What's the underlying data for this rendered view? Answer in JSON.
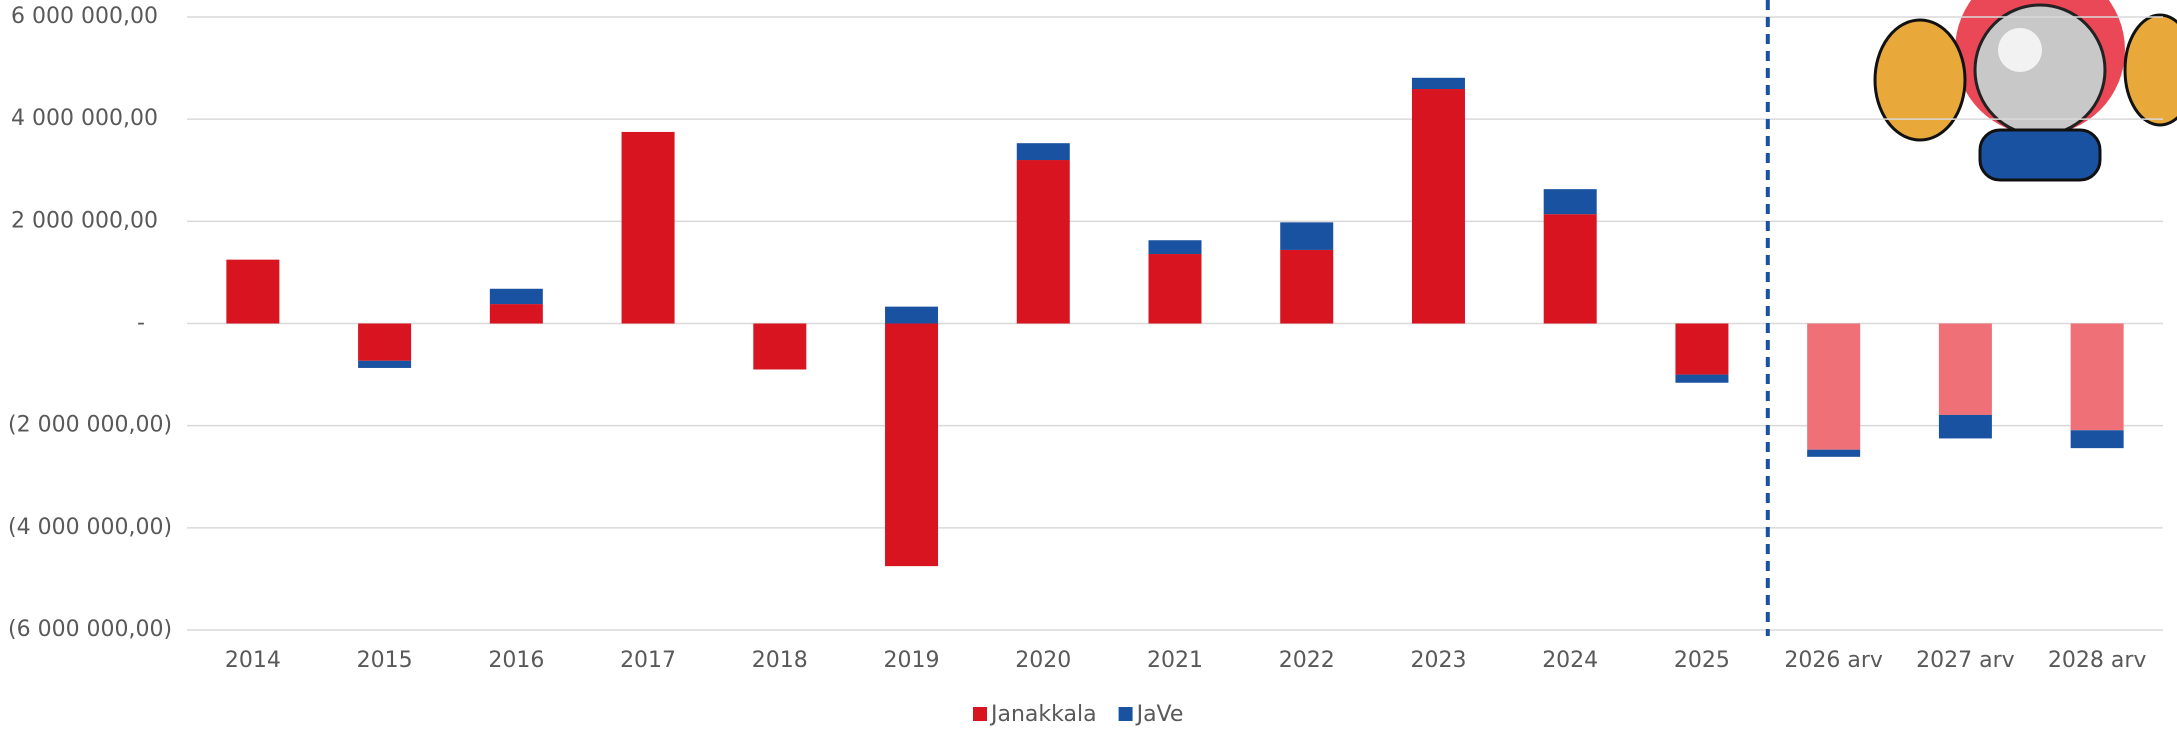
{
  "chart_data": {
    "type": "bar",
    "stacked": true,
    "categories": [
      "2014",
      "2015",
      "2016",
      "2017",
      "2018",
      "2019",
      "2020",
      "2021",
      "2022",
      "2023",
      "2024",
      "2025",
      "2026 arv",
      "2027 arv",
      "2028 arv"
    ],
    "series": [
      {
        "name": "Janakkala",
        "color": "#d7141f",
        "colors": [
          "#d7141f",
          "#d7141f",
          "#d7141f",
          "#d7141f",
          "#d7141f",
          "#d7141f",
          "#d7141f",
          "#d7141f",
          "#d7141f",
          "#d7141f",
          "#d7141f",
          "#d7141f",
          "#ef7177",
          "#ef7177",
          "#ef7177"
        ],
        "values": [
          1250000,
          -730000,
          380000,
          3750000,
          -900000,
          -4750000,
          3200000,
          1360000,
          1440000,
          4590000,
          2140000,
          -1000000,
          -2470000,
          -1790000,
          -2090000
        ]
      },
      {
        "name": "JaVe",
        "color": "#1a52a2",
        "values": [
          0,
          -140000,
          300000,
          0,
          0,
          330000,
          330000,
          270000,
          540000,
          220000,
          490000,
          -160000,
          -140000,
          -460000,
          -350000
        ]
      }
    ],
    "ylim": [
      -6000000,
      6000000
    ],
    "yticks": [
      {
        "value": -6000000,
        "label": "(6 000 000,00)"
      },
      {
        "value": -4000000,
        "label": "(4 000 000,00)"
      },
      {
        "value": -2000000,
        "label": "(2 000 000,00)"
      },
      {
        "value": 0,
        "label": "-"
      },
      {
        "value": 2000000,
        "label": "2 000 000,00"
      },
      {
        "value": 4000000,
        "label": "4 000 000,00"
      },
      {
        "value": 6000000,
        "label": "6 000 000,00"
      }
    ],
    "grid": true,
    "legend": "bottom"
  }
}
